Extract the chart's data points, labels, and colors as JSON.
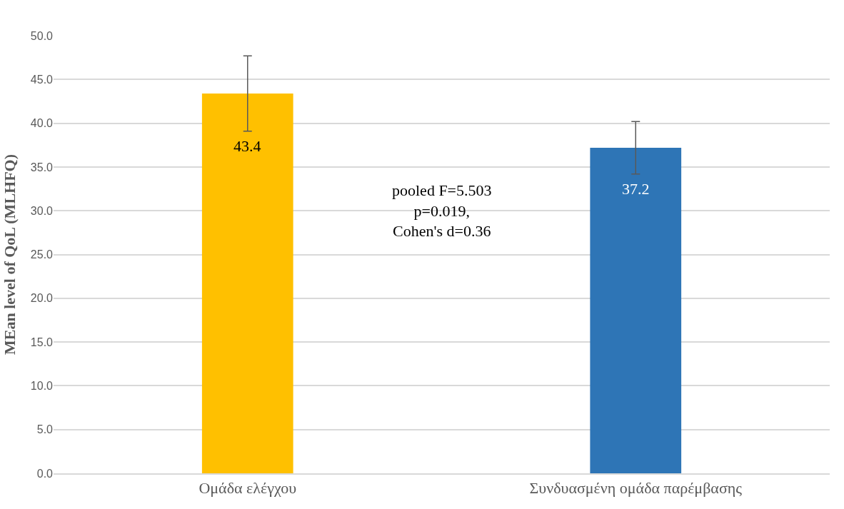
{
  "chart_data": {
    "type": "bar",
    "ylabel": "MEan level of QoL (MLHFQ)",
    "categories": [
      "Ομάδα ελέγχου",
      "Συνδυασμένη ομάδα παρέμβασης"
    ],
    "values": [
      43.4,
      37.2
    ],
    "colors": [
      "#ffc000",
      "#2e75b6"
    ],
    "errors": [
      4.3,
      3.0
    ],
    "data_labels": true,
    "ylim": [
      0,
      50
    ],
    "yticks": [
      {
        "value": 0,
        "label": "0.0"
      },
      {
        "value": 5,
        "label": "5.0"
      },
      {
        "value": 10,
        "label": "10.0"
      },
      {
        "value": 15,
        "label": "15.0"
      },
      {
        "value": 20,
        "label": "20.0"
      },
      {
        "value": 25,
        "label": "25.0"
      },
      {
        "value": 30,
        "label": "30.0"
      },
      {
        "value": 35,
        "label": "35.0"
      },
      {
        "value": 40,
        "label": "40.0"
      },
      {
        "value": 45,
        "label": "45.0"
      },
      {
        "value": 50,
        "label": "50.0"
      }
    ],
    "grid": "y",
    "annotations": [
      "pooled F=5.503\np=0.019,\nCohen's d=0.36"
    ]
  }
}
